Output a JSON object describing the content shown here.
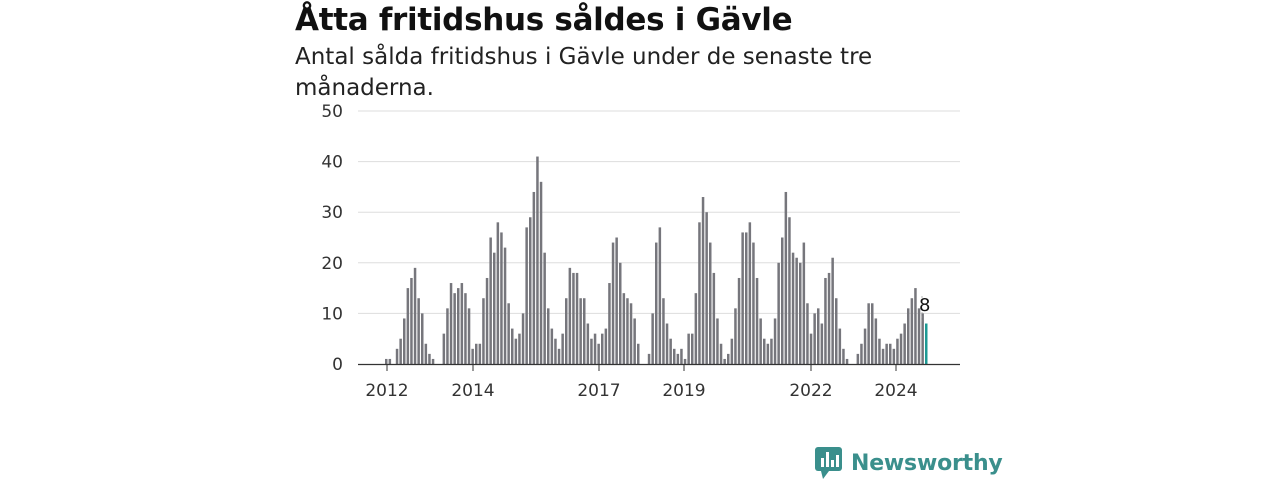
{
  "header": {
    "title": "Åtta fritidshus såldes i Gävle",
    "subtitle": "Antal sålda fritidshus i Gävle under de senaste tre månaderna."
  },
  "branding": {
    "name": "Newsworthy",
    "icon": "newsworthy-logo-icon"
  },
  "colors": {
    "bar": "#76767c",
    "highlight": "#1d9a94",
    "grid": "#dddddd",
    "brand": "#3a8f8c"
  },
  "chart_data": {
    "type": "bar",
    "ylim": [
      0,
      50
    ],
    "yticks": [
      0,
      10,
      20,
      30,
      40,
      50
    ],
    "xticks": [
      "2012",
      "2014",
      "2017",
      "2019",
      "2022",
      "2024"
    ],
    "grid": true,
    "highlight_label": "8",
    "values": [
      1,
      1,
      0,
      3,
      5,
      9,
      15,
      17,
      19,
      13,
      10,
      4,
      2,
      1,
      0,
      0,
      6,
      11,
      16,
      14,
      15,
      16,
      14,
      11,
      3,
      4,
      4,
      13,
      17,
      25,
      22,
      28,
      26,
      23,
      12,
      7,
      5,
      6,
      10,
      27,
      29,
      34,
      41,
      36,
      22,
      11,
      7,
      5,
      3,
      6,
      13,
      19,
      18,
      18,
      13,
      13,
      8,
      5,
      6,
      4,
      6,
      7,
      16,
      24,
      25,
      20,
      14,
      13,
      12,
      9,
      4,
      0,
      0,
      2,
      10,
      24,
      27,
      13,
      8,
      5,
      3,
      2,
      3,
      1,
      6,
      6,
      14,
      28,
      33,
      30,
      24,
      18,
      9,
      4,
      1,
      2,
      5,
      11,
      17,
      26,
      26,
      28,
      24,
      17,
      9,
      5,
      4,
      5,
      9,
      20,
      25,
      34,
      29,
      22,
      21,
      20,
      24,
      12,
      6,
      10,
      11,
      8,
      17,
      18,
      21,
      13,
      7,
      3,
      1,
      0,
      0,
      2,
      4,
      7,
      12,
      12,
      9,
      5,
      3,
      4,
      4,
      3,
      5,
      6,
      8,
      11,
      13,
      15,
      11,
      10,
      8
    ]
  }
}
